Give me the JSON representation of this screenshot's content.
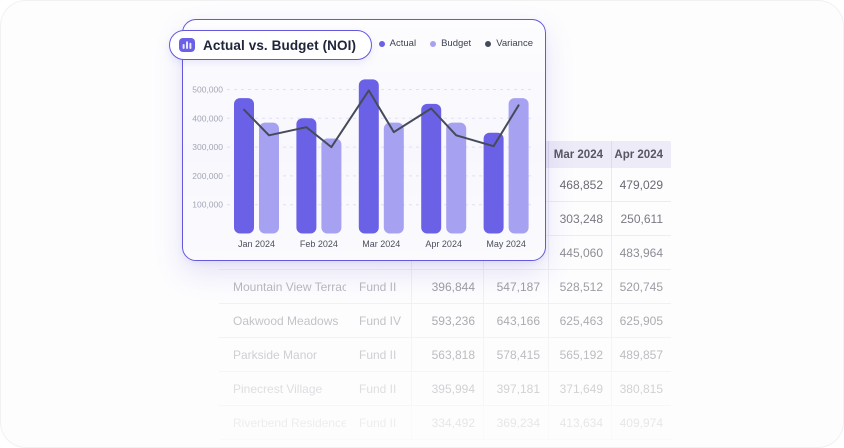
{
  "chart_card": {
    "title": "Actual vs. Budget (NOI)",
    "legend": [
      {
        "label": "Actual",
        "color": "#6b61e6"
      },
      {
        "label": "Budget",
        "color": "#a7a1f2"
      },
      {
        "label": "Variance",
        "color": "#454b59"
      }
    ]
  },
  "chart_data": {
    "type": "bar",
    "title": "Actual vs. Budget (NOI)",
    "categories": [
      "Jan 2024",
      "Feb 2024",
      "Mar 2024",
      "Apr 2024",
      "May 2024"
    ],
    "series": [
      {
        "name": "Actual",
        "type": "bar",
        "color": "#6b61e6",
        "values": [
          470000,
          400000,
          535000,
          450000,
          350000
        ]
      },
      {
        "name": "Budget",
        "type": "bar",
        "color": "#a7a1f2",
        "values": [
          385000,
          330000,
          385000,
          385000,
          470000
        ]
      },
      {
        "name": "Variance",
        "type": "line",
        "color": "#454b59",
        "values_per_bar": [
          430000,
          341000,
          369000,
          300000,
          497000,
          352000,
          434000,
          341000,
          303000,
          445000
        ]
      }
    ],
    "ylim": [
      0,
      560000
    ],
    "yticks": [
      {
        "value": 100000,
        "label": "100,000"
      },
      {
        "value": 200000,
        "label": "200,000"
      },
      {
        "value": 300000,
        "label": "300,000"
      },
      {
        "value": 400000,
        "label": "400,000"
      },
      {
        "value": 500000,
        "label": "500,000"
      }
    ],
    "grid": "dashed-horizontal",
    "legend_position": "top-right"
  },
  "table": {
    "columns": [
      {
        "key": "property",
        "header": ""
      },
      {
        "key": "fund",
        "header": ""
      },
      {
        "key": "month1",
        "header": ""
      },
      {
        "key": "month2",
        "header": ""
      },
      {
        "key": "month3",
        "header": "Mar 2024"
      },
      {
        "key": "month4",
        "header": "Apr 2024"
      }
    ],
    "rows": [
      {
        "cells": [
          "",
          "",
          "",
          "",
          "468,852",
          "479,029"
        ]
      },
      {
        "cells": [
          "",
          "",
          "",
          "",
          "303,248",
          "250,611"
        ]
      },
      {
        "cells": [
          "",
          "",
          "",
          "",
          "445,060",
          "483,964"
        ]
      },
      {
        "cells": [
          "Mountain View Terrace",
          "Fund II",
          "396,844",
          "547,187",
          "528,512",
          "520,745"
        ]
      },
      {
        "cells": [
          "Oakwood Meadows",
          "Fund IV",
          "593,236",
          "643,166",
          "625,463",
          "625,905"
        ]
      },
      {
        "cells": [
          "Parkside Manor",
          "Fund II",
          "563,818",
          "578,415",
          "565,192",
          "489,857"
        ]
      },
      {
        "cells": [
          "Pinecrest Village",
          "Fund II",
          "395,994",
          "397,181",
          "371,649",
          "380,815"
        ]
      },
      {
        "cells": [
          "Riverbend Residences",
          "Fund II",
          "334,492",
          "369,234",
          "413,634",
          "409,974"
        ]
      }
    ]
  }
}
